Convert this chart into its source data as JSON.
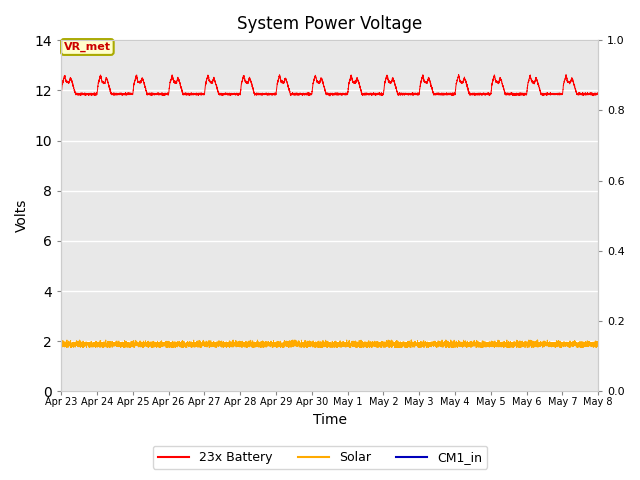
{
  "title": "System Power Voltage",
  "xlabel": "Time",
  "ylabel": "Volts",
  "background_color": "#ffffff",
  "plot_bg_color": "#e8e8e8",
  "ylim_left": [
    0,
    14
  ],
  "ylim_right": [
    0.0,
    1.0
  ],
  "yticks_left": [
    0,
    2,
    4,
    6,
    8,
    10,
    12,
    14
  ],
  "yticks_right": [
    0.0,
    0.2,
    0.4,
    0.6,
    0.8,
    1.0
  ],
  "annotation_text": "VR_met",
  "annotation_bg": "#ffffcc",
  "annotation_border": "#aaaa00",
  "legend_entries": [
    "23x Battery",
    "Solar",
    "CM1_in"
  ],
  "legend_colors": [
    "#ff0000",
    "#ffaa00",
    "#0000bb"
  ],
  "battery_base": 11.85,
  "solar_base": 1.88,
  "num_days": 15
}
